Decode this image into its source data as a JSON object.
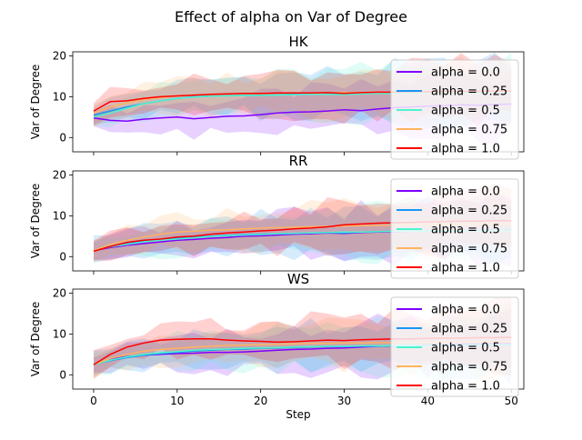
{
  "figure": {
    "title": "Effect of alpha on  Var of Degree"
  },
  "colors": {
    "alpha_0.0": "#7f00ff",
    "alpha_0.25": "#1996f3",
    "alpha_0.5": "#4df3ce",
    "alpha_0.75": "#ffb360",
    "alpha_1.0": "#ff0000"
  },
  "chart_data": [
    {
      "type": "line",
      "title": "HK",
      "xlabel": "",
      "ylabel": "Var of Degree",
      "xlim": [
        -2.5,
        51.5
      ],
      "ylim": [
        -3.5,
        21
      ],
      "xticks": [
        0,
        10,
        20,
        30,
        40,
        50
      ],
      "yticks": [
        0,
        10,
        20
      ],
      "x_tick_labels_shown": false,
      "legend": "right",
      "bands": "shaded spread around each series",
      "x": [
        0,
        2,
        4,
        6,
        8,
        10,
        12,
        14,
        16,
        18,
        20,
        22,
        24,
        26,
        28,
        30,
        32,
        34,
        36,
        38,
        40,
        42,
        44,
        46,
        48,
        50
      ],
      "series": [
        {
          "name": "alpha = 0.0",
          "color": "#7f00ff",
          "values": [
            4.8,
            4.2,
            4.0,
            4.5,
            4.8,
            5.0,
            4.6,
            4.9,
            5.2,
            5.3,
            5.6,
            6.0,
            6.2,
            6.3,
            6.5,
            6.8,
            6.6,
            7.0,
            7.3,
            7.5,
            7.7,
            7.8,
            8.0,
            7.9,
            8.1,
            8.2
          ]
        },
        {
          "name": "alpha = 0.25",
          "color": "#1996f3",
          "values": [
            5.5,
            6.5,
            7.5,
            8.3,
            9.0,
            9.6,
            10.0,
            10.2,
            10.4,
            10.5,
            10.5,
            10.6,
            10.6,
            10.7,
            10.7,
            10.6,
            10.8,
            10.8,
            10.9,
            10.9,
            11.0,
            11.0,
            11.0,
            11.1,
            11.1,
            11.0
          ]
        },
        {
          "name": "alpha = 0.5",
          "color": "#4df3ce",
          "values": [
            5.0,
            6.0,
            7.2,
            8.3,
            9.0,
            9.6,
            9.9,
            10.1,
            10.2,
            10.3,
            10.3,
            10.4,
            10.5,
            10.6,
            10.6,
            10.5,
            10.7,
            10.8,
            10.8,
            10.9,
            10.9,
            11.0,
            11.0,
            11.0,
            11.1,
            11.0
          ]
        },
        {
          "name": "alpha = 0.75",
          "color": "#ffb360",
          "values": [
            6.0,
            7.5,
            8.5,
            9.3,
            9.8,
            10.2,
            10.4,
            10.5,
            10.6,
            10.7,
            10.7,
            10.8,
            10.9,
            10.9,
            11.0,
            11.0,
            11.0,
            11.1,
            11.1,
            11.2,
            11.2,
            11.2,
            11.3,
            11.3,
            11.3,
            11.3
          ]
        },
        {
          "name": "alpha = 1.0",
          "color": "#ff0000",
          "values": [
            6.5,
            8.8,
            9.0,
            9.6,
            10.0,
            10.2,
            10.4,
            10.6,
            10.7,
            10.8,
            10.8,
            10.9,
            10.9,
            10.9,
            11.0,
            10.8,
            11.0,
            11.1,
            11.1,
            11.2,
            11.2,
            11.3,
            11.3,
            11.3,
            11.4,
            11.4
          ]
        }
      ]
    },
    {
      "type": "line",
      "title": "RR",
      "xlabel": "",
      "ylabel": "Var of Degree",
      "xlim": [
        -2.5,
        51.5
      ],
      "ylim": [
        -3.5,
        21
      ],
      "xticks": [
        0,
        10,
        20,
        30,
        40,
        50
      ],
      "yticks": [
        0,
        10,
        20
      ],
      "x_tick_labels_shown": false,
      "legend": "right",
      "bands": "shaded spread around each series",
      "x": [
        0,
        2,
        4,
        6,
        8,
        10,
        12,
        14,
        16,
        18,
        20,
        22,
        24,
        26,
        28,
        30,
        32,
        34,
        36,
        38,
        40,
        42,
        44,
        46,
        48,
        50
      ],
      "series": [
        {
          "name": "alpha = 0.0",
          "color": "#7f00ff",
          "values": [
            1.5,
            2.2,
            2.8,
            3.2,
            3.6,
            4.0,
            4.2,
            4.5,
            4.7,
            5.0,
            5.1,
            5.3,
            5.5,
            5.6,
            5.8,
            5.7,
            5.9,
            6.0,
            6.1,
            6.2,
            6.2,
            6.3,
            6.3,
            6.4,
            6.4,
            6.5
          ]
        },
        {
          "name": "alpha = 0.25",
          "color": "#1996f3",
          "values": [
            1.5,
            2.5,
            3.2,
            3.8,
            4.2,
            4.5,
            4.8,
            5.0,
            5.2,
            5.4,
            5.5,
            5.6,
            5.7,
            5.8,
            5.9,
            5.8,
            6.0,
            6.1,
            6.2,
            6.2,
            6.3,
            6.3,
            6.4,
            6.4,
            6.5,
            6.5
          ]
        },
        {
          "name": "alpha = 0.5",
          "color": "#4df3ce",
          "values": [
            1.5,
            2.4,
            3.0,
            3.6,
            4.0,
            4.3,
            4.6,
            4.9,
            5.1,
            5.3,
            5.4,
            5.6,
            5.7,
            5.8,
            5.9,
            6.0,
            6.0,
            6.1,
            6.2,
            6.2,
            6.3,
            6.3,
            6.3,
            6.4,
            6.4,
            6.4
          ]
        },
        {
          "name": "alpha = 0.75",
          "color": "#ffb360",
          "values": [
            1.5,
            3.0,
            4.0,
            4.8,
            5.5,
            6.0,
            6.2,
            6.5,
            6.6,
            6.8,
            7.0,
            7.1,
            7.2,
            7.3,
            7.4,
            7.5,
            7.6,
            7.6,
            7.7,
            7.8,
            7.8,
            7.9,
            7.9,
            8.0,
            8.0,
            8.0
          ]
        },
        {
          "name": "alpha = 1.0",
          "color": "#ff0000",
          "values": [
            1.3,
            2.5,
            3.5,
            4.0,
            4.3,
            4.8,
            5.0,
            5.5,
            5.8,
            6.0,
            6.3,
            6.5,
            6.8,
            7.0,
            7.3,
            7.8,
            8.0,
            8.2,
            8.3,
            8.4,
            8.5,
            8.6,
            8.7,
            8.7,
            8.8,
            8.8
          ]
        }
      ]
    },
    {
      "type": "line",
      "title": "WS",
      "xlabel": "Step",
      "ylabel": "Var of Degree",
      "xlim": [
        -2.5,
        51.5
      ],
      "ylim": [
        -3.5,
        21
      ],
      "xticks": [
        0,
        10,
        20,
        30,
        40,
        50
      ],
      "yticks": [
        0,
        10,
        20
      ],
      "x_tick_labels_shown": true,
      "legend": "right",
      "bands": "shaded spread around each series",
      "x": [
        0,
        2,
        4,
        6,
        8,
        10,
        12,
        14,
        16,
        18,
        20,
        22,
        24,
        26,
        28,
        30,
        32,
        34,
        36,
        38,
        40,
        42,
        44,
        46,
        48,
        50
      ],
      "series": [
        {
          "name": "alpha = 0.0",
          "color": "#7f00ff",
          "values": [
            2.5,
            3.8,
            4.5,
            4.8,
            5.0,
            5.2,
            5.3,
            5.5,
            5.5,
            5.6,
            5.8,
            6.0,
            6.2,
            6.3,
            6.5,
            6.6,
            6.8,
            7.0,
            7.1,
            7.2,
            7.3,
            7.4,
            7.5,
            7.5,
            7.6,
            7.6
          ]
        },
        {
          "name": "alpha = 0.25",
          "color": "#1996f3",
          "values": [
            2.5,
            3.5,
            4.2,
            4.8,
            5.2,
            5.5,
            5.8,
            6.0,
            6.2,
            6.3,
            6.5,
            6.6,
            6.7,
            6.8,
            6.9,
            6.9,
            7.0,
            7.0,
            7.1,
            7.1,
            7.2,
            7.2,
            7.2,
            7.3,
            7.3,
            7.3
          ]
        },
        {
          "name": "alpha = 0.5",
          "color": "#4df3ce",
          "values": [
            2.5,
            3.6,
            4.4,
            5.0,
            5.4,
            5.7,
            6.0,
            6.2,
            6.3,
            6.5,
            6.6,
            6.7,
            6.8,
            6.9,
            7.0,
            7.0,
            7.1,
            7.1,
            7.2,
            7.2,
            7.2,
            7.3,
            7.3,
            7.3,
            7.4,
            7.4
          ]
        },
        {
          "name": "alpha = 0.75",
          "color": "#ffb360",
          "values": [
            2.5,
            4.0,
            5.0,
            5.8,
            6.2,
            6.5,
            6.8,
            7.0,
            7.2,
            7.3,
            7.4,
            7.5,
            7.6,
            7.7,
            7.7,
            7.8,
            7.8,
            7.9,
            7.9,
            8.0,
            8.0,
            8.0,
            8.1,
            8.1,
            8.1,
            8.2
          ]
        },
        {
          "name": "alpha = 1.0",
          "color": "#ff0000",
          "values": [
            2.5,
            5.0,
            6.8,
            7.8,
            8.5,
            8.7,
            8.8,
            8.8,
            8.5,
            8.3,
            8.2,
            8.0,
            8.1,
            8.3,
            8.5,
            8.4,
            8.6,
            8.7,
            8.8,
            8.8,
            8.9,
            9.0,
            9.0,
            9.1,
            9.1,
            9.2
          ]
        }
      ]
    }
  ]
}
